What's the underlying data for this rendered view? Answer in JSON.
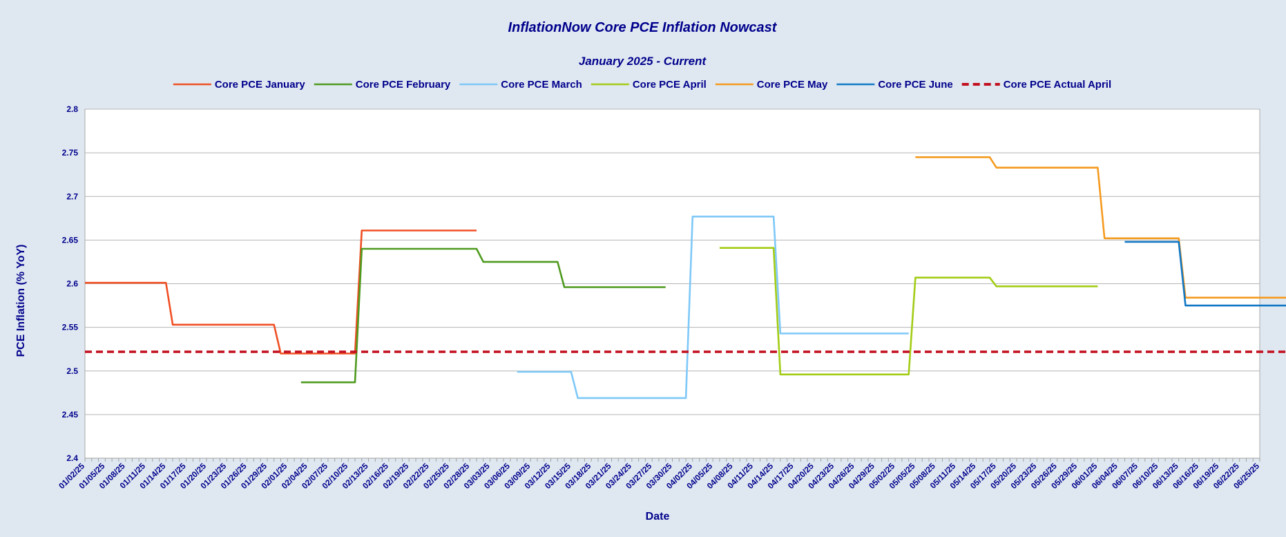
{
  "chart_data": {
    "type": "line",
    "title": "InflationNow Core PCE Inflation Nowcast",
    "subtitle": "January 2025 - Current",
    "xlabel": "Date",
    "ylabel": "PCE Inflation (% YoY)",
    "ylim": [
      2.4,
      2.8
    ],
    "yticks": [
      "2.4",
      "2.45",
      "2.5",
      "2.55",
      "2.6",
      "2.65",
      "2.7",
      "2.75",
      "2.8"
    ],
    "grid": true,
    "legend_position": "top",
    "x_ticks": [
      "01/02/25",
      "01/05/25",
      "01/08/25",
      "01/11/25",
      "01/14/25",
      "01/17/25",
      "01/20/25",
      "01/23/25",
      "01/26/25",
      "01/29/25",
      "02/01/25",
      "02/04/25",
      "02/07/25",
      "02/10/25",
      "02/13/25",
      "02/16/25",
      "02/19/25",
      "02/22/25",
      "02/25/25",
      "02/28/25",
      "03/03/25",
      "03/06/25",
      "03/09/25",
      "03/12/25",
      "03/15/25",
      "03/18/25",
      "03/21/25",
      "03/24/25",
      "03/27/25",
      "03/30/25",
      "04/02/25",
      "04/05/25",
      "04/08/25",
      "04/11/25",
      "04/14/25",
      "04/17/25",
      "04/20/25",
      "04/23/25",
      "04/26/25",
      "04/29/25",
      "05/02/25",
      "05/05/25",
      "05/08/25",
      "05/11/25",
      "05/14/25",
      "05/17/25",
      "05/20/25",
      "05/23/25",
      "05/26/25",
      "05/29/25",
      "06/01/25",
      "06/04/25",
      "06/07/25",
      "06/10/25",
      "06/13/25",
      "06/16/25",
      "06/19/25",
      "06/22/25",
      "06/25/25"
    ],
    "series": [
      {
        "name": "Core PCE January",
        "color": "#f04e23",
        "dashed": false,
        "points": [
          [
            "01/02/25",
            2.601
          ],
          [
            "01/14/25",
            2.601
          ],
          [
            "01/15/25",
            2.553
          ],
          [
            "01/30/25",
            2.553
          ],
          [
            "01/31/25",
            2.52
          ],
          [
            "02/11/25",
            2.52
          ],
          [
            "02/12/25",
            2.661
          ],
          [
            "03/01/25",
            2.661
          ]
        ]
      },
      {
        "name": "Core PCE February",
        "color": "#4e9a1e",
        "dashed": false,
        "points": [
          [
            "02/03/25",
            2.487
          ],
          [
            "02/11/25",
            2.487
          ],
          [
            "02/12/25",
            2.64
          ],
          [
            "03/01/25",
            2.64
          ],
          [
            "03/02/25",
            2.625
          ],
          [
            "03/13/25",
            2.625
          ],
          [
            "03/14/25",
            2.596
          ],
          [
            "03/29/25",
            2.596
          ]
        ]
      },
      {
        "name": "Core PCE March",
        "color": "#7ec8f8",
        "dashed": false,
        "points": [
          [
            "03/07/25",
            2.499
          ],
          [
            "03/15/25",
            2.499
          ],
          [
            "03/16/25",
            2.469
          ],
          [
            "04/01/25",
            2.469
          ],
          [
            "04/02/25",
            2.677
          ],
          [
            "04/14/25",
            2.677
          ],
          [
            "04/15/25",
            2.543
          ],
          [
            "05/04/25",
            2.543
          ]
        ]
      },
      {
        "name": "Core PCE April",
        "color": "#a2cc14",
        "dashed": false,
        "points": [
          [
            "04/06/25",
            2.641
          ],
          [
            "04/14/25",
            2.641
          ],
          [
            "04/15/25",
            2.496
          ],
          [
            "05/04/25",
            2.496
          ],
          [
            "05/05/25",
            2.607
          ],
          [
            "05/16/25",
            2.607
          ],
          [
            "05/17/25",
            2.597
          ],
          [
            "06/01/25",
            2.597
          ]
        ]
      },
      {
        "name": "Core PCE May",
        "color": "#f59a1f",
        "dashed": false,
        "points": [
          [
            "05/05/25",
            2.745
          ],
          [
            "05/16/25",
            2.745
          ],
          [
            "05/17/25",
            2.733
          ],
          [
            "06/01/25",
            2.733
          ],
          [
            "06/02/25",
            2.652
          ],
          [
            "06/13/25",
            2.652
          ],
          [
            "06/14/25",
            2.584
          ],
          [
            "06/29/25",
            2.584
          ]
        ]
      },
      {
        "name": "Core PCE June",
        "color": "#1177c5",
        "dashed": false,
        "points": [
          [
            "06/05/25",
            2.648
          ],
          [
            "06/13/25",
            2.648
          ],
          [
            "06/14/25",
            2.575
          ],
          [
            "06/29/25",
            2.575
          ]
        ]
      },
      {
        "name": "Core PCE Actual April",
        "color": "#c2101f",
        "dashed": true,
        "points": [
          [
            "01/02/25",
            2.522
          ],
          [
            "06/29/25",
            2.522
          ]
        ]
      }
    ]
  }
}
